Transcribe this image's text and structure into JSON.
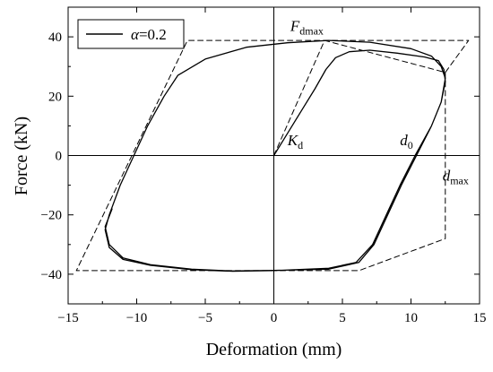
{
  "chart_data": {
    "type": "line",
    "title": "",
    "xlabel": "Deformation (mm)",
    "ylabel": "Force (kN)",
    "xlim": [
      -15,
      15
    ],
    "ylim": [
      -50,
      50
    ],
    "xticks": [
      -15,
      -10,
      -5,
      0,
      5,
      10,
      15
    ],
    "yticks": [
      -40,
      -20,
      0,
      20,
      40
    ],
    "xtick_labels": [
      "−15",
      "−10",
      "−5",
      "0",
      "5",
      "10",
      "15"
    ],
    "ytick_labels": [
      "−40",
      "−20",
      "0",
      "20",
      "40"
    ],
    "grid": false,
    "legend": {
      "placement": "top-left",
      "label_symbol": "α",
      "label_text": "=0.2",
      "line_color": "#000000"
    },
    "series": [
      {
        "name": "α=0.2",
        "style": "solid",
        "color": "#000000",
        "points": [
          [
            0.0,
            0.0
          ],
          [
            1.0,
            7.5
          ],
          [
            2.0,
            15.0
          ],
          [
            3.0,
            22.5
          ],
          [
            3.8,
            29.0
          ],
          [
            4.5,
            33.0
          ],
          [
            5.5,
            35.0
          ],
          [
            7.0,
            35.5
          ],
          [
            9.0,
            34.5
          ],
          [
            11.0,
            33.2
          ],
          [
            12.0,
            32.0
          ],
          [
            12.4,
            29.0
          ],
          [
            12.5,
            25.0
          ],
          [
            12.2,
            18.0
          ],
          [
            11.5,
            10.0
          ],
          [
            10.3,
            0.0
          ],
          [
            9.2,
            -10.0
          ],
          [
            8.2,
            -20.0
          ],
          [
            7.2,
            -30.0
          ],
          [
            6.0,
            -36.0
          ],
          [
            4.0,
            -38.0
          ],
          [
            0.0,
            -38.8
          ],
          [
            -3.0,
            -39.0
          ],
          [
            -6.0,
            -38.5
          ],
          [
            -9.0,
            -37.0
          ],
          [
            -11.0,
            -35.0
          ],
          [
            -12.0,
            -31.0
          ],
          [
            -12.3,
            -25.0
          ],
          [
            -12.0,
            -20.0
          ],
          [
            -11.2,
            -10.0
          ],
          [
            -10.2,
            0.0
          ],
          [
            -9.2,
            10.0
          ],
          [
            -8.0,
            20.0
          ],
          [
            -7.0,
            27.0
          ],
          [
            -5.0,
            32.5
          ],
          [
            -2.0,
            36.5
          ],
          [
            1.0,
            38.0
          ],
          [
            4.0,
            38.8
          ],
          [
            7.0,
            38.2
          ],
          [
            10.0,
            36.0
          ],
          [
            11.5,
            33.5
          ],
          [
            12.2,
            30.0
          ],
          [
            12.5,
            26.0
          ],
          [
            12.2,
            18.0
          ],
          [
            11.5,
            10.0
          ],
          [
            10.4,
            0.0
          ],
          [
            9.3,
            -10.0
          ],
          [
            8.3,
            -20.0
          ],
          [
            7.3,
            -30.0
          ],
          [
            6.2,
            -36.0
          ],
          [
            4.0,
            -38.3
          ],
          [
            0.0,
            -38.7
          ],
          [
            -3.0,
            -38.9
          ],
          [
            -6.0,
            -38.3
          ],
          [
            -9.0,
            -36.8
          ],
          [
            -11.0,
            -34.5
          ],
          [
            -12.0,
            -30.0
          ],
          [
            -12.3,
            -24.0
          ],
          [
            -11.8,
            -18.0
          ]
        ]
      },
      {
        "name": "",
        "style": "dashed",
        "color": "#000000",
        "points": [
          [
            0.0,
            0.0
          ],
          [
            3.7,
            38.8
          ],
          [
            12.5,
            28.0
          ],
          [
            14.2,
            38.8
          ],
          [
            -6.3,
            38.8
          ],
          [
            -14.4,
            -38.8
          ],
          [
            6.2,
            -38.8
          ],
          [
            12.5,
            -28.0
          ],
          [
            12.5,
            28.0
          ]
        ]
      }
    ],
    "annotations": [
      {
        "id": "fdmax",
        "main": "F",
        "sub": "dmax",
        "x": 1.2,
        "y": 42
      },
      {
        "id": "kd",
        "main": "K",
        "sub": "d",
        "x": 1.0,
        "y": 3.5
      },
      {
        "id": "d0",
        "main": "d",
        "sub": "0",
        "x": 9.2,
        "y": 3.5
      },
      {
        "id": "dmax",
        "main": "d",
        "sub": "max",
        "x": 12.3,
        "y": -8.5
      }
    ]
  }
}
